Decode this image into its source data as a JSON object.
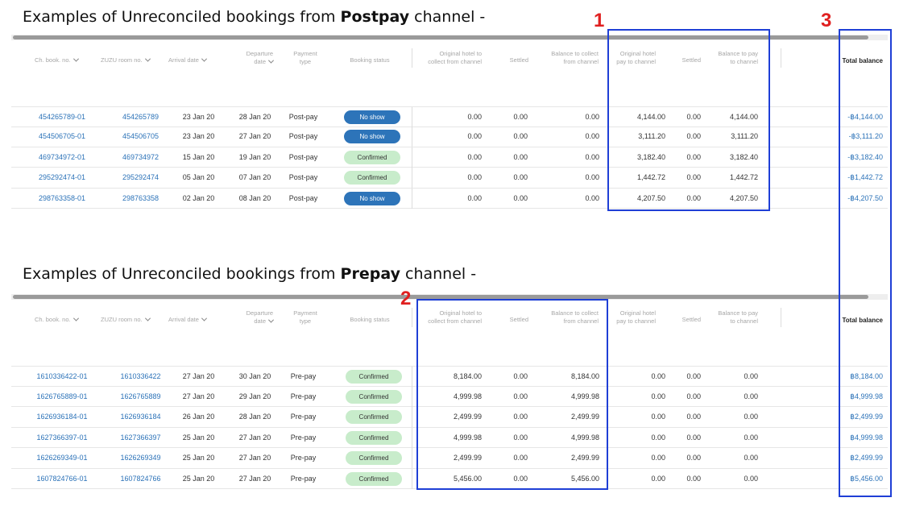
{
  "postpay": {
    "title_pre": "Examples of Unreconciled bookings from ",
    "title_bold": "Postpay",
    "title_post": " channel -",
    "headers": {
      "ch_book_no": "Ch. book. no.",
      "zuzu_room_no": "ZUZU room no.",
      "arrival_date": "Arrival date",
      "departure_1": "Departure",
      "departure_2": "date",
      "payment_1": "Payment",
      "payment_2": "type",
      "booking_status": "Booking status",
      "orig_collect_1": "Original hotel to",
      "orig_collect_2": "collect from channel",
      "settled_a": "Settled",
      "bal_collect_1": "Balance to collect",
      "bal_collect_2": "from channel",
      "orig_pay_1": "Original hotel",
      "orig_pay_2": "pay to channel",
      "settled_b": "Settled",
      "bal_pay_1": "Balance to pay",
      "bal_pay_2": "to channel",
      "total_balance": "Total balance"
    },
    "rows": [
      {
        "ch": "454265789-01",
        "zuzu": "454265789",
        "arr": "23 Jan 20",
        "dep": "28 Jan 20",
        "pay": "Post-pay",
        "status": "No show",
        "c1": "0.00",
        "c2": "0.00",
        "c3": "0.00",
        "c4": "4,144.00",
        "c5": "0.00",
        "c6": "4,144.00",
        "total": "-฿4,144.00"
      },
      {
        "ch": "454506705-01",
        "zuzu": "454506705",
        "arr": "23 Jan 20",
        "dep": "27 Jan 20",
        "pay": "Post-pay",
        "status": "No show",
        "c1": "0.00",
        "c2": "0.00",
        "c3": "0.00",
        "c4": "3,111.20",
        "c5": "0.00",
        "c6": "3,111.20",
        "total": "-฿3,111.20"
      },
      {
        "ch": "469734972-01",
        "zuzu": "469734972",
        "arr": "15 Jan 20",
        "dep": "19 Jan 20",
        "pay": "Post-pay",
        "status": "Confirmed",
        "c1": "0.00",
        "c2": "0.00",
        "c3": "0.00",
        "c4": "3,182.40",
        "c5": "0.00",
        "c6": "3,182.40",
        "total": "-฿3,182.40"
      },
      {
        "ch": "295292474-01",
        "zuzu": "295292474",
        "arr": "05 Jan 20",
        "dep": "07 Jan 20",
        "pay": "Post-pay",
        "status": "Confirmed",
        "c1": "0.00",
        "c2": "0.00",
        "c3": "0.00",
        "c4": "1,442.72",
        "c5": "0.00",
        "c6": "1,442.72",
        "total": "-฿1,442.72"
      },
      {
        "ch": "298763358-01",
        "zuzu": "298763358",
        "arr": "02 Jan 20",
        "dep": "08 Jan 20",
        "pay": "Post-pay",
        "status": "No show",
        "c1": "0.00",
        "c2": "0.00",
        "c3": "0.00",
        "c4": "4,207.50",
        "c5": "0.00",
        "c6": "4,207.50",
        "total": "-฿4,207.50"
      }
    ]
  },
  "prepay": {
    "title_pre": "Examples of Unreconciled bookings from ",
    "title_bold": "Prepay",
    "title_post": " channel -",
    "headers": {
      "ch_book_no": "Ch. book. no.",
      "zuzu_room_no": "ZUZU room no.",
      "arrival_date": "Arrival date",
      "departure_1": "Departure",
      "departure_2": "date",
      "payment_1": "Payment",
      "payment_2": "type",
      "booking_status": "Booking status",
      "orig_collect_1": "Original hotel to",
      "orig_collect_2": "collect from channel",
      "settled_a": "Settled",
      "bal_collect_1": "Balance to collect",
      "bal_collect_2": "from channel",
      "orig_pay_1": "Original hotel",
      "orig_pay_2": "pay to channel",
      "settled_b": "Settled",
      "bal_pay_1": "Balance to pay",
      "bal_pay_2": "to channel",
      "total_balance": "Total balance"
    },
    "rows": [
      {
        "ch": "1610336422-01",
        "zuzu": "1610336422",
        "arr": "27 Jan 20",
        "dep": "30 Jan 20",
        "pay": "Pre-pay",
        "status": "Confirmed",
        "c1": "8,184.00",
        "c2": "0.00",
        "c3": "8,184.00",
        "c4": "0.00",
        "c5": "0.00",
        "c6": "0.00",
        "total": "฿8,184.00"
      },
      {
        "ch": "1626765889-01",
        "zuzu": "1626765889",
        "arr": "27 Jan 20",
        "dep": "29 Jan 20",
        "pay": "Pre-pay",
        "status": "Confirmed",
        "c1": "4,999.98",
        "c2": "0.00",
        "c3": "4,999.98",
        "c4": "0.00",
        "c5": "0.00",
        "c6": "0.00",
        "total": "฿4,999.98"
      },
      {
        "ch": "1626936184-01",
        "zuzu": "1626936184",
        "arr": "26 Jan 20",
        "dep": "28 Jan 20",
        "pay": "Pre-pay",
        "status": "Confirmed",
        "c1": "2,499.99",
        "c2": "0.00",
        "c3": "2,499.99",
        "c4": "0.00",
        "c5": "0.00",
        "c6": "0.00",
        "total": "฿2,499.99"
      },
      {
        "ch": "1627366397-01",
        "zuzu": "1627366397",
        "arr": "25 Jan 20",
        "dep": "27 Jan 20",
        "pay": "Pre-pay",
        "status": "Confirmed",
        "c1": "4,999.98",
        "c2": "0.00",
        "c3": "4,999.98",
        "c4": "0.00",
        "c5": "0.00",
        "c6": "0.00",
        "total": "฿4,999.98"
      },
      {
        "ch": "1626269349-01",
        "zuzu": "1626269349",
        "arr": "25 Jan 20",
        "dep": "27 Jan 20",
        "pay": "Pre-pay",
        "status": "Confirmed",
        "c1": "2,499.99",
        "c2": "0.00",
        "c3": "2,499.99",
        "c4": "0.00",
        "c5": "0.00",
        "c6": "0.00",
        "total": "฿2,499.99"
      },
      {
        "ch": "1607824766-01",
        "zuzu": "1607824766",
        "arr": "25 Jan 20",
        "dep": "27 Jan 20",
        "pay": "Pre-pay",
        "status": "Confirmed",
        "c1": "5,456.00",
        "c2": "0.00",
        "c3": "5,456.00",
        "c4": "0.00",
        "c5": "0.00",
        "c6": "0.00",
        "total": "฿5,456.00"
      }
    ]
  },
  "annotations": [
    "1",
    "2",
    "3"
  ],
  "colors": {
    "link": "#2b72b8",
    "no_show_badge": "#2d74b9",
    "confirmed_badge": "#c8eccb",
    "highlight_box": "#1f3fd6",
    "annotation_number": "#e02020"
  }
}
